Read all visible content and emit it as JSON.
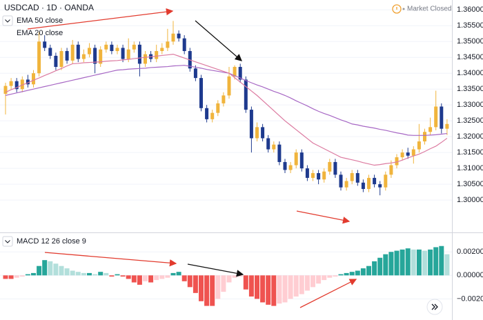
{
  "header": {
    "symbol": "USDCAD · 1D · OANDA",
    "status": "Market Closed"
  },
  "chart_data": [
    {
      "type": "candlestick",
      "open": [
        1.3335,
        1.336,
        1.3375,
        1.335,
        1.338,
        1.3365,
        1.34,
        1.35,
        1.348,
        1.3455,
        1.342,
        1.347,
        1.344,
        1.349,
        1.3445,
        1.346,
        1.348,
        1.343,
        1.3475,
        1.349,
        1.347,
        1.348,
        1.3445,
        1.3475,
        1.349,
        1.343,
        1.346,
        1.3445,
        1.347,
        1.348,
        1.35,
        1.3525,
        1.351,
        1.347,
        1.3415,
        1.3385,
        1.329,
        1.3255,
        1.3275,
        1.3305,
        1.333,
        1.339,
        1.342,
        1.338,
        1.3285,
        1.3195,
        1.323,
        1.3195,
        1.316,
        1.3175,
        1.312,
        1.3095,
        1.311,
        1.315,
        1.31,
        1.307,
        1.3085,
        1.3065,
        1.309,
        1.312,
        1.308,
        1.304,
        1.306,
        1.3085,
        1.3055,
        1.3035,
        1.307,
        1.305,
        1.304,
        1.308,
        1.311,
        1.3135,
        1.315,
        1.314,
        1.316,
        1.3185,
        1.3215,
        1.323,
        1.3295,
        1.3225
      ],
      "high": [
        1.337,
        1.3385,
        1.3385,
        1.339,
        1.3395,
        1.341,
        1.353,
        1.352,
        1.349,
        1.3465,
        1.348,
        1.348,
        1.3505,
        1.35,
        1.3475,
        1.3495,
        1.349,
        1.3485,
        1.35,
        1.35,
        1.349,
        1.349,
        1.351,
        1.35,
        1.35,
        1.347,
        1.347,
        1.349,
        1.3495,
        1.354,
        1.3565,
        1.3535,
        1.352,
        1.348,
        1.3425,
        1.3395,
        1.33,
        1.3285,
        1.3315,
        1.334,
        1.342,
        1.3425,
        1.343,
        1.339,
        1.3295,
        1.3245,
        1.324,
        1.3205,
        1.3185,
        1.3185,
        1.313,
        1.312,
        1.316,
        1.316,
        1.311,
        1.3095,
        1.3095,
        1.31,
        1.313,
        1.313,
        1.309,
        1.307,
        1.3095,
        1.3095,
        1.3065,
        1.308,
        1.308,
        1.306,
        1.309,
        1.3125,
        1.3145,
        1.316,
        1.3165,
        1.317,
        1.324,
        1.3225,
        1.326,
        1.3345,
        1.3305,
        1.3255
      ],
      "low": [
        1.327,
        1.335,
        1.334,
        1.334,
        1.3355,
        1.3355,
        1.339,
        1.347,
        1.3445,
        1.341,
        1.341,
        1.343,
        1.343,
        1.3435,
        1.3435,
        1.345,
        1.34,
        1.342,
        1.3465,
        1.346,
        1.346,
        1.3435,
        1.3435,
        1.3465,
        1.339,
        1.342,
        1.3435,
        1.3435,
        1.346,
        1.347,
        1.349,
        1.35,
        1.346,
        1.3405,
        1.3375,
        1.328,
        1.3245,
        1.3245,
        1.3265,
        1.3295,
        1.332,
        1.338,
        1.337,
        1.3275,
        1.315,
        1.3185,
        1.3185,
        1.315,
        1.315,
        1.311,
        1.3085,
        1.3085,
        1.31,
        1.309,
        1.306,
        1.306,
        1.305,
        1.3055,
        1.308,
        1.307,
        1.303,
        1.303,
        1.305,
        1.3045,
        1.3025,
        1.3025,
        1.304,
        1.3015,
        1.303,
        1.307,
        1.31,
        1.3125,
        1.313,
        1.3115,
        1.315,
        1.3175,
        1.3205,
        1.322,
        1.321,
        1.3205
      ],
      "close": [
        1.336,
        1.3375,
        1.335,
        1.338,
        1.3365,
        1.34,
        1.35,
        1.348,
        1.3455,
        1.342,
        1.347,
        1.344,
        1.349,
        1.3445,
        1.346,
        1.348,
        1.343,
        1.3475,
        1.349,
        1.347,
        1.348,
        1.3445,
        1.3475,
        1.349,
        1.343,
        1.346,
        1.3445,
        1.347,
        1.348,
        1.35,
        1.3525,
        1.351,
        1.347,
        1.3415,
        1.3385,
        1.329,
        1.3255,
        1.3275,
        1.3305,
        1.333,
        1.339,
        1.342,
        1.338,
        1.3285,
        1.3195,
        1.323,
        1.3195,
        1.316,
        1.3175,
        1.312,
        1.3095,
        1.311,
        1.315,
        1.31,
        1.307,
        1.3085,
        1.3065,
        1.309,
        1.312,
        1.308,
        1.304,
        1.306,
        1.3085,
        1.3055,
        1.3035,
        1.307,
        1.305,
        1.304,
        1.308,
        1.311,
        1.3135,
        1.315,
        1.314,
        1.316,
        1.3185,
        1.3215,
        1.323,
        1.3295,
        1.3225,
        1.324
      ],
      "up_color": "#f0b43c",
      "down_color": "#1e3a8e",
      "series": [
        {
          "name": "EMA 50 close",
          "color": "#a666c4",
          "values": [
            1.333,
            1.3334,
            1.3338,
            1.3342,
            1.3346,
            1.335,
            1.3354,
            1.3358,
            1.3362,
            1.3366,
            1.337,
            1.3374,
            1.3378,
            1.3382,
            1.3386,
            1.339,
            1.3394,
            1.3398,
            1.3402,
            1.3406,
            1.341,
            1.3411,
            1.3413,
            1.3414,
            1.3415,
            1.3416,
            1.3418,
            1.3419,
            1.342,
            1.3421,
            1.3423,
            1.3424,
            1.3425,
            1.3422,
            1.3419,
            1.3416,
            1.3412,
            1.3409,
            1.3406,
            1.3403,
            1.34,
            1.3392,
            1.3385,
            1.3377,
            1.337,
            1.3363,
            1.3357,
            1.335,
            1.3343,
            1.3337,
            1.333,
            1.3322,
            1.3313,
            1.3305,
            1.3297,
            1.3288,
            1.328,
            1.3273,
            1.3267,
            1.326,
            1.3253,
            1.3247,
            1.324,
            1.3237,
            1.3233,
            1.323,
            1.3227,
            1.3223,
            1.322,
            1.3216,
            1.3212,
            1.3209,
            1.3205,
            1.3204,
            1.3204,
            1.3204,
            1.3205,
            1.3206,
            1.3208,
            1.321
          ]
        },
        {
          "name": "EMA 20 close",
          "color": "#dc7aa0",
          "values": [
            1.334,
            1.3348,
            1.3355,
            1.3363,
            1.337,
            1.3378,
            1.3385,
            1.3393,
            1.34,
            1.3408,
            1.3415,
            1.3423,
            1.343,
            1.3431,
            1.3433,
            1.3434,
            1.3435,
            1.3436,
            1.3438,
            1.3439,
            1.344,
            1.3442,
            1.3444,
            1.3446,
            1.3448,
            1.345,
            1.3452,
            1.3454,
            1.3456,
            1.3458,
            1.346,
            1.3454,
            1.3448,
            1.3442,
            1.3436,
            1.343,
            1.3424,
            1.3418,
            1.3412,
            1.3406,
            1.34,
            1.3386,
            1.3372,
            1.3358,
            1.3344,
            1.333,
            1.3314,
            1.3298,
            1.3282,
            1.3266,
            1.325,
            1.3236,
            1.3222,
            1.3208,
            1.3194,
            1.318,
            1.3171,
            1.3162,
            1.3153,
            1.3144,
            1.3135,
            1.3131,
            1.3127,
            1.3123,
            1.3118,
            1.3114,
            1.311,
            1.3112,
            1.3115,
            1.3117,
            1.312,
            1.3126,
            1.3133,
            1.3139,
            1.3145,
            1.3153,
            1.3162,
            1.317,
            1.3182,
            1.3195
          ]
        }
      ],
      "ylim": [
        1.2898,
        1.3631
      ],
      "yticks": [
        {
          "value": 1.3,
          "label": "1.30000"
        },
        {
          "value": 1.305,
          "label": "1.30500"
        },
        {
          "value": 1.31,
          "label": "1.31000"
        },
        {
          "value": 1.315,
          "label": "1.31500"
        },
        {
          "value": 1.32,
          "label": "1.32000"
        },
        {
          "value": 1.325,
          "label": "1.32500"
        },
        {
          "value": 1.33,
          "label": "1.33000"
        },
        {
          "value": 1.335,
          "label": "1.33500"
        },
        {
          "value": 1.34,
          "label": "1.34000"
        },
        {
          "value": 1.345,
          "label": "1.34500"
        },
        {
          "value": 1.35,
          "label": "1.35000"
        },
        {
          "value": 1.355,
          "label": "1.35500"
        },
        {
          "value": 1.36,
          "label": "1.36000"
        }
      ],
      "grid": true
    },
    {
      "type": "bar",
      "title": "MACD 12 26 close 9",
      "values": [
        -0.0003,
        -0.0003,
        -0.0002,
        -0.0001,
        0.0001,
        0.0002,
        0.0008,
        0.0013,
        0.0012,
        0.001,
        0.0008,
        0.0006,
        0.0004,
        0.0003,
        0.0002,
        0.0002,
        0.0001,
        0.0003,
        0.0002,
        -0.0001,
        0.0001,
        -0.0001,
        -0.0003,
        -0.0006,
        -0.0008,
        -0.0005,
        -0.0006,
        -0.0004,
        -0.0003,
        -0.0002,
        0.0002,
        0.0003,
        -0.0005,
        -0.001,
        -0.0015,
        -0.0022,
        -0.0026,
        -0.0026,
        -0.002,
        -0.0014,
        -0.0006,
        -0.0002,
        -0.0001,
        -0.0012,
        -0.0018,
        -0.002,
        -0.0023,
        -0.0025,
        -0.0026,
        -0.0024,
        -0.0023,
        -0.002,
        -0.0018,
        -0.0016,
        -0.0013,
        -0.001,
        -0.0007,
        -0.0004,
        -0.0002,
        -0.0001,
        0.0001,
        0.0002,
        0.0003,
        0.0004,
        0.0006,
        0.0008,
        0.0012,
        0.0015,
        0.0018,
        0.002,
        0.0021,
        0.0022,
        0.0023,
        0.0022,
        0.0022,
        0.0021,
        0.0022,
        0.0024,
        0.0025,
        0.0018
      ],
      "colors": {
        "grow_up": "#26a69a",
        "fall_up": "#b2dfdb",
        "fall_down": "#ef5350",
        "grow_down": "#ffcdd2"
      },
      "ylim": [
        -0.0038,
        0.0036
      ],
      "yticks": [
        {
          "value": -0.002,
          "label": "−0.00200"
        },
        {
          "value": 0,
          "label": "0.00000"
        },
        {
          "value": 0.002,
          "label": "0.00200"
        }
      ],
      "grid": true
    }
  ]
}
